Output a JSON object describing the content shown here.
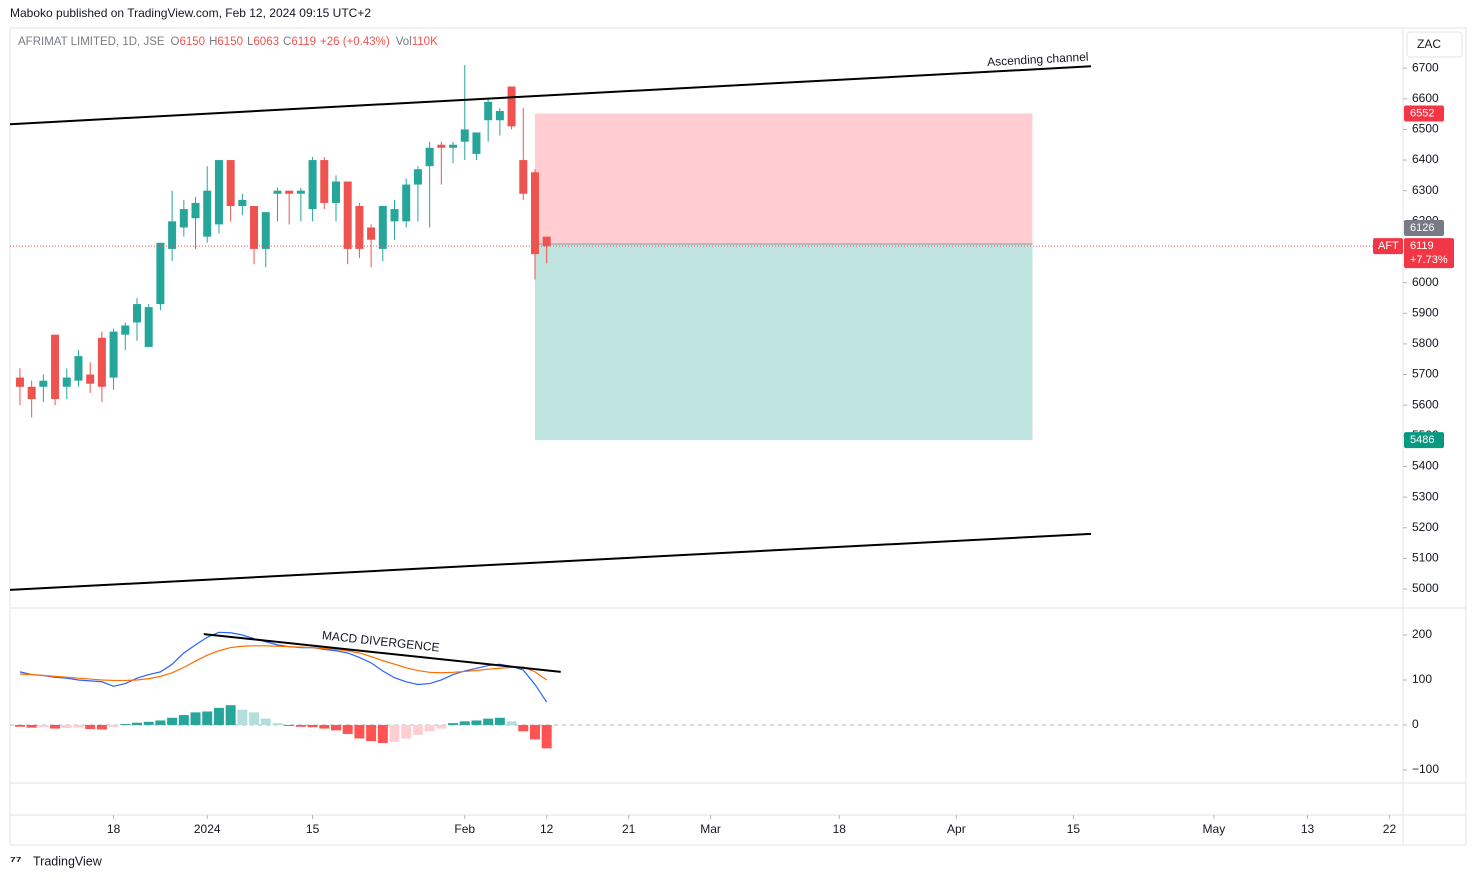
{
  "header": {
    "publisher": "Maboko published on TradingView.com, Feb 12, 2024 09:15 UTC+2",
    "symbol": "AFRIMAT LIMITED, 1D, JSE",
    "legend_labels": [
      "O",
      "H",
      "L",
      "C"
    ],
    "change": "+26 (+0.43%)",
    "volume_label": "Vol",
    "volume": "110K",
    "currency": "ZAC",
    "footer": "TradingView"
  },
  "chart_data": [
    {
      "type": "candlestick",
      "open": [
        5690,
        5660,
        5660,
        5830,
        5660,
        5680,
        5700,
        5820,
        5690,
        5830,
        5870,
        5790,
        5930,
        6110,
        6180,
        6210,
        6150,
        6190,
        6400,
        6250,
        6250,
        6110,
        6290,
        6300,
        6290,
        6240,
        6400,
        6260,
        6330,
        6250,
        6180,
        6110,
        6200,
        6200,
        6320,
        6380,
        6450,
        6440,
        6460,
        6420,
        6530,
        6530,
        6640,
        6400,
        6360,
        6150
      ],
      "high": [
        5720,
        5680,
        5700,
        5830,
        5720,
        5780,
        5740,
        5840,
        5850,
        5870,
        5950,
        5930,
        6130,
        6300,
        6270,
        6280,
        6380,
        6400,
        6400,
        6290,
        6250,
        6220,
        6310,
        6300,
        6310,
        6410,
        6410,
        6350,
        6330,
        6260,
        6190,
        6250,
        6270,
        6340,
        6380,
        6460,
        6460,
        6460,
        6710,
        6490,
        6600,
        6570,
        6640,
        6570,
        6370,
        6150
      ],
      "low": [
        5600,
        5560,
        5610,
        5600,
        5620,
        5660,
        5640,
        5610,
        5650,
        5780,
        5810,
        5790,
        5910,
        6070,
        6150,
        6110,
        6130,
        6160,
        6200,
        6220,
        6060,
        6050,
        6200,
        6190,
        6200,
        6200,
        6240,
        6200,
        6060,
        6080,
        6050,
        6070,
        6140,
        6180,
        6200,
        6180,
        6320,
        6390,
        6400,
        6400,
        6460,
        6480,
        6500,
        6270,
        6010,
        6063
      ],
      "close": [
        5660,
        5620,
        5680,
        5620,
        5690,
        5760,
        5670,
        5660,
        5840,
        5860,
        5930,
        5920,
        6130,
        6200,
        6240,
        6260,
        6300,
        6400,
        6250,
        6270,
        6110,
        6230,
        6300,
        6290,
        6300,
        6400,
        6260,
        6330,
        6110,
        6110,
        6140,
        6250,
        6240,
        6320,
        6370,
        6440,
        6440,
        6450,
        6500,
        6490,
        6590,
        6560,
        6510,
        6290,
        6093,
        6119
      ],
      "up_color": "#26a69a",
      "down_color": "#ef5350",
      "symbol_badge": "AFT",
      "change_badge": "+7.73%",
      "xlim": [
        -0.85,
        117.9
      ],
      "xticks": [
        {
          "value": 8,
          "label": "18"
        },
        {
          "value": 16,
          "label": "2024"
        },
        {
          "value": 25,
          "label": "15"
        },
        {
          "value": 38,
          "label": "Feb"
        },
        {
          "value": 45,
          "label": "12"
        },
        {
          "value": 52,
          "label": "21"
        },
        {
          "value": 59,
          "label": "Mar"
        },
        {
          "value": 70,
          "label": "18"
        },
        {
          "value": 80,
          "label": "Apr"
        },
        {
          "value": 90,
          "label": "15"
        },
        {
          "value": 102,
          "label": "May"
        },
        {
          "value": 110,
          "label": "13"
        },
        {
          "value": 117,
          "label": "22"
        }
      ],
      "ylim": [
        4938,
        6831
      ],
      "yticks": [
        5000,
        5100,
        5200,
        5300,
        5400,
        5500,
        5600,
        5700,
        5800,
        5900,
        6000,
        6100,
        6200,
        6300,
        6400,
        6500,
        6600,
        6700
      ],
      "position": {
        "x_start": 44,
        "x_end": 86.5,
        "entry": 6126,
        "stop": 6552,
        "target": 5486,
        "stop_color": "#ffcdd2",
        "target_color": "#bfe4e0"
      },
      "channel": {
        "label": "Ascending channel",
        "x": [
          -0.85,
          91.5
        ],
        "upper": [
          6517,
          6706
        ],
        "lower": [
          4997,
          5180
        ]
      }
    },
    {
      "type": "macd",
      "xlim": [
        -0.85,
        117.9
      ],
      "ylim": [
        -129,
        260
      ],
      "yticks": [
        200,
        100,
        0,
        {
          "value": -100,
          "label": "−100"
        }
      ],
      "macd": [
        118,
        112,
        110,
        106,
        104,
        100,
        98,
        96,
        86,
        92,
        104,
        112,
        118,
        135,
        160,
        178,
        195,
        206,
        205,
        200,
        192,
        185,
        178,
        174,
        172,
        172,
        168,
        165,
        160,
        150,
        138,
        120,
        105,
        96,
        90,
        92,
        100,
        112,
        120,
        126,
        132,
        135,
        130,
        122,
        90,
        51
      ],
      "signal": [
        113,
        112,
        110,
        108,
        106,
        104,
        102,
        100,
        99,
        99,
        100,
        103,
        108,
        116,
        128,
        142,
        155,
        165,
        172,
        175,
        176,
        176,
        175,
        174,
        173,
        172,
        170,
        168,
        165,
        160,
        152,
        143,
        135,
        127,
        121,
        117,
        116,
        117,
        119,
        121,
        124,
        126,
        128,
        129,
        118,
        100
      ],
      "histogram": [
        -4,
        -6,
        -5,
        -8,
        -7,
        -6,
        -9,
        -10,
        -5,
        2,
        5,
        7,
        10,
        16,
        22,
        28,
        30,
        38,
        44,
        34,
        28,
        14,
        4,
        -2,
        -4,
        -5,
        -8,
        -12,
        -20,
        -30,
        -36,
        -40,
        -38,
        -30,
        -22,
        -14,
        -8,
        4,
        8,
        10,
        14,
        16,
        8,
        -14,
        -32,
        -52
      ],
      "macd_color": "#2962ff",
      "signal_color": "#ff6d00",
      "hist_colors": [
        "#26a69a",
        "#b2dfdb",
        "#ff5252",
        "#ffcdd2"
      ],
      "divergence": {
        "label": "MACD DIVERGENCE",
        "x": [
          15.7,
          46.2
        ],
        "y": [
          202,
          118
        ]
      }
    }
  ]
}
